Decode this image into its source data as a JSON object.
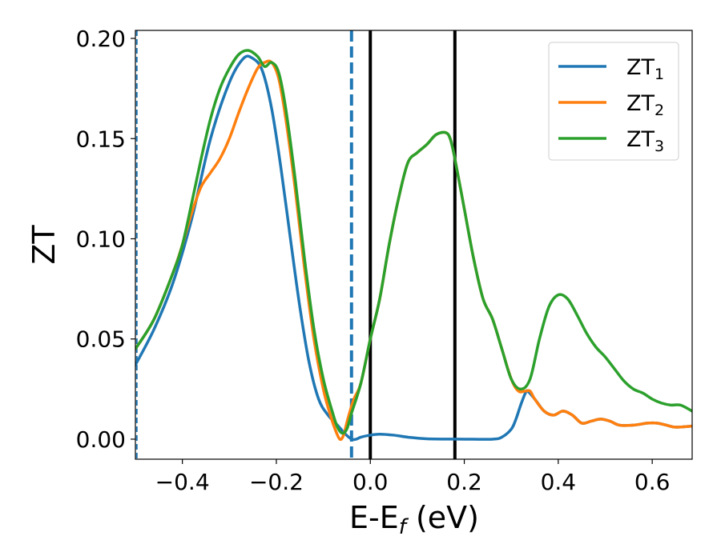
{
  "chart_data": {
    "type": "line",
    "xlabel": "E-E",
    "xlabel_sub": "f",
    "xlabel_unit": " (eV)",
    "ylabel": "ZT",
    "xlim": [
      -0.5,
      0.685
    ],
    "ylim": [
      -0.01,
      0.204
    ],
    "xticks": [
      -0.4,
      -0.2,
      0.0,
      0.2,
      0.4,
      0.6
    ],
    "xtick_labels": [
      "−0.4",
      "−0.2",
      "0.0",
      "0.2",
      "0.4",
      "0.6"
    ],
    "yticks": [
      0.0,
      0.05,
      0.1,
      0.15,
      0.2
    ],
    "ytick_labels": [
      "0.00",
      "0.05",
      "0.10",
      "0.15",
      "0.20"
    ],
    "grid": false,
    "legend_position": "top-right",
    "vlines": [
      {
        "x": -0.497,
        "style": "dashed",
        "color": "#1f77b4",
        "width": "thin"
      },
      {
        "x": -0.04,
        "style": "dashed",
        "color": "#1f77b4",
        "width": "thick"
      },
      {
        "x": 0.0,
        "style": "solid",
        "color": "#000000",
        "width": "thick"
      },
      {
        "x": 0.18,
        "style": "solid",
        "color": "#000000",
        "width": "thick"
      }
    ],
    "series": [
      {
        "name": "ZT",
        "name_sub": "1",
        "color": "#1f77b4",
        "points": [
          [
            -0.5,
            0.037
          ],
          [
            -0.46,
            0.055
          ],
          [
            -0.42,
            0.078
          ],
          [
            -0.38,
            0.11
          ],
          [
            -0.34,
            0.15
          ],
          [
            -0.3,
            0.178
          ],
          [
            -0.27,
            0.19
          ],
          [
            -0.25,
            0.19
          ],
          [
            -0.23,
            0.184
          ],
          [
            -0.21,
            0.165
          ],
          [
            -0.19,
            0.135
          ],
          [
            -0.17,
            0.1
          ],
          [
            -0.15,
            0.066
          ],
          [
            -0.13,
            0.038
          ],
          [
            -0.11,
            0.02
          ],
          [
            -0.09,
            0.012
          ],
          [
            -0.07,
            0.007
          ],
          [
            -0.055,
            0.003
          ],
          [
            -0.04,
            0.0
          ],
          [
            -0.03,
            0.0
          ],
          [
            -0.02,
            0.001
          ],
          [
            0.0,
            0.002
          ],
          [
            0.02,
            0.0025
          ],
          [
            0.05,
            0.002
          ],
          [
            0.08,
            0.001
          ],
          [
            0.12,
            0.0002
          ],
          [
            0.2,
            0.0
          ],
          [
            0.26,
            0.0
          ],
          [
            0.28,
            0.001
          ],
          [
            0.3,
            0.005
          ],
          [
            0.31,
            0.01
          ],
          [
            0.32,
            0.017
          ],
          [
            0.33,
            0.023
          ],
          [
            0.335,
            0.024
          ],
          [
            0.35,
            0.02
          ],
          [
            0.37,
            0.014
          ],
          [
            0.39,
            0.012
          ],
          [
            0.41,
            0.014
          ],
          [
            0.43,
            0.012
          ],
          [
            0.45,
            0.008
          ],
          [
            0.47,
            0.009
          ],
          [
            0.49,
            0.01
          ],
          [
            0.51,
            0.009
          ],
          [
            0.53,
            0.007
          ],
          [
            0.56,
            0.007
          ],
          [
            0.59,
            0.008
          ],
          [
            0.61,
            0.008
          ],
          [
            0.63,
            0.007
          ],
          [
            0.65,
            0.006
          ],
          [
            0.685,
            0.0065
          ]
        ]
      },
      {
        "name": "ZT",
        "name_sub": "2",
        "color": "#ff7f0e",
        "points": [
          [
            -0.5,
            0.045
          ],
          [
            -0.46,
            0.06
          ],
          [
            -0.42,
            0.083
          ],
          [
            -0.4,
            0.097
          ],
          [
            -0.38,
            0.113
          ],
          [
            -0.36,
            0.126
          ],
          [
            -0.34,
            0.133
          ],
          [
            -0.32,
            0.14
          ],
          [
            -0.3,
            0.15
          ],
          [
            -0.28,
            0.163
          ],
          [
            -0.26,
            0.175
          ],
          [
            -0.24,
            0.185
          ],
          [
            -0.225,
            0.188
          ],
          [
            -0.21,
            0.188
          ],
          [
            -0.195,
            0.18
          ],
          [
            -0.18,
            0.16
          ],
          [
            -0.16,
            0.125
          ],
          [
            -0.14,
            0.085
          ],
          [
            -0.12,
            0.05
          ],
          [
            -0.1,
            0.025
          ],
          [
            -0.085,
            0.012
          ],
          [
            -0.075,
            0.005
          ],
          [
            -0.065,
            0.0
          ],
          [
            -0.057,
            0.002
          ],
          [
            -0.048,
            0.01
          ],
          [
            -0.035,
            0.02
          ],
          [
            -0.02,
            0.028
          ],
          [
            0.0,
            0.05
          ],
          [
            0.02,
            0.07
          ],
          [
            0.04,
            0.097
          ],
          [
            0.06,
            0.12
          ],
          [
            0.08,
            0.138
          ],
          [
            0.1,
            0.143
          ],
          [
            0.12,
            0.147
          ],
          [
            0.14,
            0.152
          ],
          [
            0.16,
            0.153
          ],
          [
            0.17,
            0.15
          ],
          [
            0.18,
            0.14
          ],
          [
            0.2,
            0.115
          ],
          [
            0.22,
            0.09
          ],
          [
            0.24,
            0.07
          ],
          [
            0.26,
            0.06
          ],
          [
            0.28,
            0.045
          ],
          [
            0.3,
            0.03
          ],
          [
            0.315,
            0.024
          ],
          [
            0.33,
            0.024
          ],
          [
            0.34,
            0.024
          ],
          [
            0.35,
            0.02
          ],
          [
            0.37,
            0.014
          ],
          [
            0.39,
            0.012
          ],
          [
            0.41,
            0.014
          ],
          [
            0.43,
            0.012
          ],
          [
            0.45,
            0.008
          ],
          [
            0.47,
            0.009
          ],
          [
            0.49,
            0.01
          ],
          [
            0.51,
            0.009
          ],
          [
            0.53,
            0.007
          ],
          [
            0.56,
            0.007
          ],
          [
            0.59,
            0.008
          ],
          [
            0.61,
            0.008
          ],
          [
            0.63,
            0.007
          ],
          [
            0.65,
            0.006
          ],
          [
            0.685,
            0.0065
          ]
        ]
      },
      {
        "name": "ZT",
        "name_sub": "3",
        "color": "#2ca02c",
        "points": [
          [
            -0.5,
            0.045
          ],
          [
            -0.46,
            0.06
          ],
          [
            -0.42,
            0.083
          ],
          [
            -0.4,
            0.097
          ],
          [
            -0.38,
            0.118
          ],
          [
            -0.36,
            0.14
          ],
          [
            -0.34,
            0.16
          ],
          [
            -0.32,
            0.175
          ],
          [
            -0.3,
            0.185
          ],
          [
            -0.28,
            0.192
          ],
          [
            -0.26,
            0.194
          ],
          [
            -0.24,
            0.191
          ],
          [
            -0.225,
            0.186
          ],
          [
            -0.21,
            0.188
          ],
          [
            -0.195,
            0.183
          ],
          [
            -0.18,
            0.165
          ],
          [
            -0.16,
            0.13
          ],
          [
            -0.14,
            0.09
          ],
          [
            -0.12,
            0.055
          ],
          [
            -0.1,
            0.03
          ],
          [
            -0.08,
            0.013
          ],
          [
            -0.07,
            0.006
          ],
          [
            -0.06,
            0.003
          ],
          [
            -0.05,
            0.005
          ],
          [
            -0.04,
            0.013
          ],
          [
            -0.02,
            0.028
          ],
          [
            0.0,
            0.05
          ],
          [
            0.02,
            0.07
          ],
          [
            0.04,
            0.097
          ],
          [
            0.06,
            0.12
          ],
          [
            0.08,
            0.138
          ],
          [
            0.1,
            0.143
          ],
          [
            0.12,
            0.147
          ],
          [
            0.14,
            0.152
          ],
          [
            0.16,
            0.153
          ],
          [
            0.17,
            0.15
          ],
          [
            0.18,
            0.14
          ],
          [
            0.2,
            0.115
          ],
          [
            0.22,
            0.09
          ],
          [
            0.24,
            0.07
          ],
          [
            0.26,
            0.06
          ],
          [
            0.28,
            0.045
          ],
          [
            0.3,
            0.03
          ],
          [
            0.32,
            0.025
          ],
          [
            0.34,
            0.03
          ],
          [
            0.36,
            0.05
          ],
          [
            0.38,
            0.066
          ],
          [
            0.4,
            0.072
          ],
          [
            0.42,
            0.07
          ],
          [
            0.44,
            0.062
          ],
          [
            0.46,
            0.053
          ],
          [
            0.48,
            0.046
          ],
          [
            0.5,
            0.041
          ],
          [
            0.52,
            0.035
          ],
          [
            0.54,
            0.029
          ],
          [
            0.56,
            0.025
          ],
          [
            0.58,
            0.023
          ],
          [
            0.6,
            0.02
          ],
          [
            0.62,
            0.018
          ],
          [
            0.64,
            0.017
          ],
          [
            0.66,
            0.017
          ],
          [
            0.685,
            0.014
          ]
        ]
      }
    ]
  }
}
